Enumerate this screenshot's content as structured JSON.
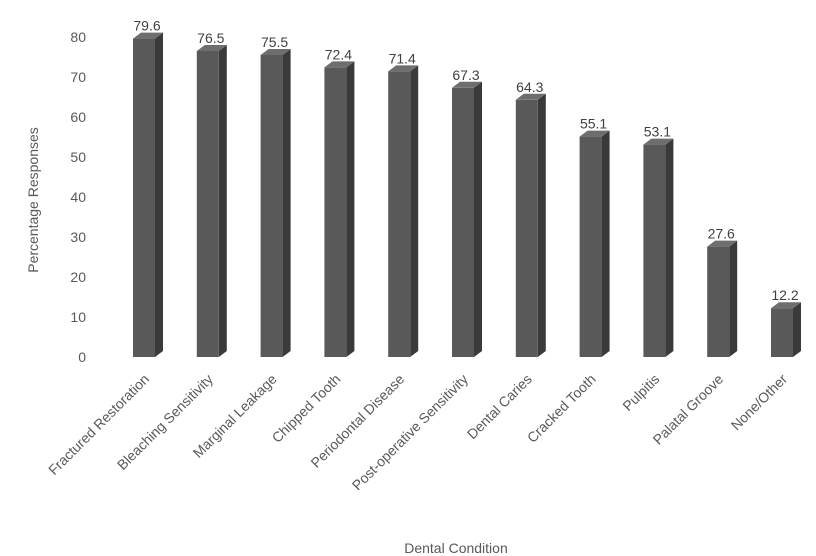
{
  "chart_data": {
    "type": "bar",
    "style": "3d-column",
    "categories": [
      "Fractured Restoration",
      "Bleaching Sensitivity",
      "Marginal Leakage",
      "Chipped Tooth",
      "Periodontal Disease",
      "Post-operative Sensitivity",
      "Dental Caries",
      "Cracked Tooth",
      "Pulpitis",
      "Palatal Groove",
      "None/Other"
    ],
    "values": [
      79.6,
      76.5,
      75.5,
      72.4,
      71.4,
      67.3,
      64.3,
      55.1,
      53.1,
      27.6,
      12.2
    ],
    "data_labels": [
      "79.6",
      "76.5",
      "75.5",
      "72.4",
      "71.4",
      "67.3",
      "64.3",
      "55.1",
      "53.1",
      "27.6",
      "12.2"
    ],
    "title": "",
    "xlabel": "Dental Condition",
    "ylabel": "Percentage Responses",
    "ylim": [
      0,
      80
    ],
    "yticks": [
      0,
      10,
      20,
      30,
      40,
      50,
      60,
      70,
      80
    ],
    "grid": false,
    "legend": "none",
    "colors": {
      "bar_front": "#595959",
      "bar_side": "#3a3a3a",
      "bar_top": "#6e6e6e",
      "text": "#595959"
    }
  }
}
